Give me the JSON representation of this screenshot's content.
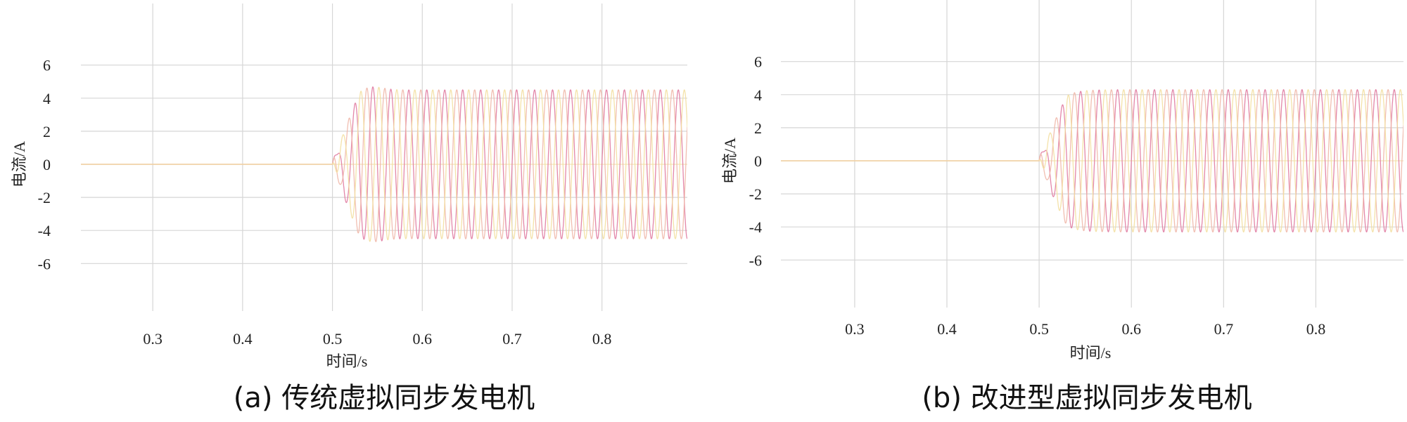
{
  "colors": {
    "grid": "#d6d6d6",
    "zero_line": "#f2e3b8",
    "phase_a": "#e07aa0",
    "phase_b": "#f0b7a8",
    "phase_c": "#f3dfa0"
  },
  "chart_data": [
    {
      "type": "line",
      "caption": "(a)  传统虚拟同步发电机",
      "xlabel": "时间/s",
      "ylabel": "电流/A",
      "xlim": [
        0.22,
        0.895
      ],
      "ylim": [
        -7.6,
        7.6
      ],
      "xticks": [
        0.3,
        0.4,
        0.5,
        0.6,
        0.7,
        0.8
      ],
      "yticks": [
        6,
        4,
        2,
        0,
        -2,
        -4,
        -6
      ],
      "xtick_labels": [
        "0.3",
        "0.4",
        "0.5",
        "0.6",
        "0.7",
        "0.8"
      ],
      "ytick_labels": [
        "6",
        "4",
        "2",
        "0",
        "-2",
        "-4",
        "-6"
      ],
      "grid": true,
      "legend": "none",
      "signal": {
        "onset_s": 0.5,
        "steady_amplitude_A": 4.5,
        "peak_overshoot_A": 4.8,
        "frequency_hz": 50,
        "phases": 3,
        "settle_s": 0.56
      }
    },
    {
      "type": "line",
      "caption": "(b)  改进型虚拟同步发电机",
      "xlabel": "时间/s",
      "ylabel": "电流/A",
      "xlim": [
        0.22,
        0.895
      ],
      "ylim": [
        -7.6,
        7.6
      ],
      "xticks": [
        0.3,
        0.4,
        0.5,
        0.6,
        0.7,
        0.8
      ],
      "yticks": [
        6,
        4,
        2,
        0,
        -2,
        -4,
        -6
      ],
      "xtick_labels": [
        "0.3",
        "0.4",
        "0.5",
        "0.6",
        "0.7",
        "0.8"
      ],
      "ytick_labels": [
        "6",
        "4",
        "2",
        "0",
        "-2",
        "-4",
        "-6"
      ],
      "grid": true,
      "legend": "none",
      "signal": {
        "onset_s": 0.5,
        "steady_amplitude_A": 4.3,
        "peak_overshoot_A": 4.3,
        "frequency_hz": 50,
        "phases": 3,
        "settle_s": 0.535
      }
    }
  ]
}
